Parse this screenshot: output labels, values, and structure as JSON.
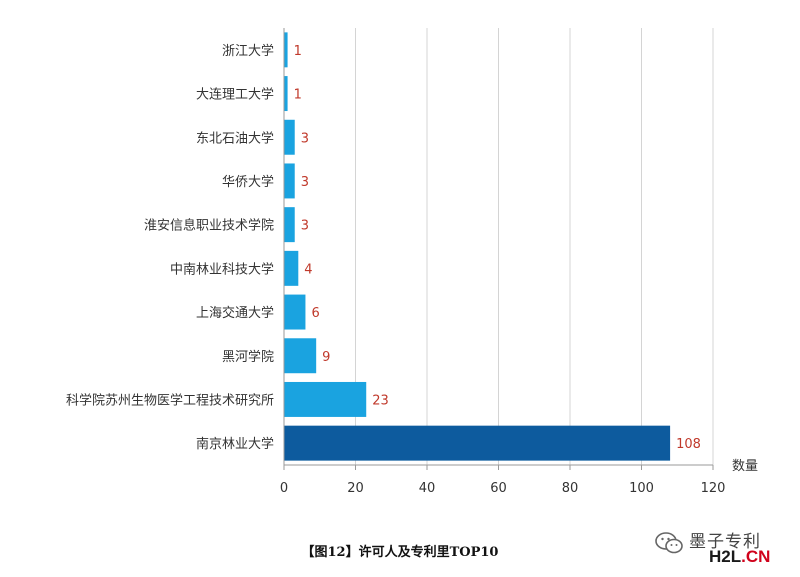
{
  "chart_data": {
    "type": "bar",
    "orientation": "horizontal",
    "categories": [
      "浙江大学",
      "大连理工大学",
      "东北石油大学",
      "华侨大学",
      "淮安信息职业技术学院",
      "中南林业科技大学",
      "上海交通大学",
      "黑河学院",
      "科学院苏州生物医学工程技术研究所",
      "南京林业大学"
    ],
    "values": [
      1,
      1,
      3,
      3,
      3,
      4,
      6,
      9,
      23,
      108
    ],
    "xlabel": "数量",
    "ylabel": "",
    "xlim": [
      0,
      120
    ],
    "xticks": [
      0,
      20,
      40,
      60,
      80,
      100,
      120
    ],
    "grid": "vertical",
    "bar_color": "#1aa3e0",
    "highlight_color": "#0d5b9e",
    "label_color": "#c0392b"
  },
  "caption": "【图12】许可人及专利里TOP10",
  "watermark": {
    "text": "墨子专利",
    "brand_dark": "H2L",
    "brand_red": ".CN"
  }
}
